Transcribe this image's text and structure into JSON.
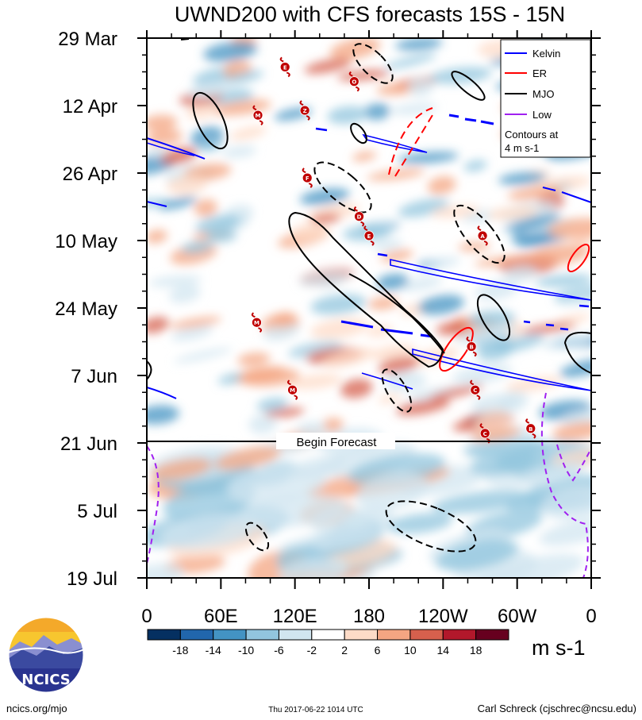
{
  "chart_data": {
    "type": "heatmap",
    "title": "UWND200 with CFS forecasts  15S - 15N",
    "units": "m s-1",
    "x_ticks": [
      "0",
      "60E",
      "120E",
      "180",
      "120W",
      "60W",
      "0"
    ],
    "y_ticks": [
      "29 Mar",
      "12 Apr",
      "26 Apr",
      "10 May",
      "24 May",
      "7 Jun",
      "21 Jun",
      "5 Jul",
      "19 Jul"
    ],
    "forecast_label": "Begin Forecast",
    "forecast_start": "21 Jun",
    "colorbar": {
      "labels": [
        "-18",
        "-14",
        "-10",
        "-6",
        "-2",
        "2",
        "6",
        "10",
        "14",
        "18"
      ],
      "colors": [
        "#053061",
        "#2166ac",
        "#4393c3",
        "#92c5de",
        "#d1e5f0",
        "#ffffff",
        "#fddbc7",
        "#f4a582",
        "#d6604d",
        "#b2182b",
        "#67001f"
      ]
    },
    "legend": {
      "position": "top-right",
      "entries": [
        {
          "name": "Kelvin",
          "color": "#0000ff"
        },
        {
          "name": "ER",
          "color": "#ff0000"
        },
        {
          "name": "MJO",
          "color": "#000000"
        },
        {
          "name": "Low",
          "color": "#a020f0"
        }
      ],
      "note_line1": "Contours at",
      "note_line2": "4 m s-1"
    },
    "storms": [
      {
        "label": "E",
        "lon": 112,
        "date": "4 Apr"
      },
      {
        "label": "O",
        "lon": 168,
        "date": "7 Apr"
      },
      {
        "label": "M",
        "lon": 90,
        "date": "14 Apr"
      },
      {
        "label": "Z",
        "lon": 128,
        "date": "13 Apr"
      },
      {
        "label": "F",
        "lon": 130,
        "date": "27 Apr"
      },
      {
        "label": "D",
        "lon": 172,
        "date": "5 May"
      },
      {
        "label": "E",
        "lon": 180,
        "date": "9 May"
      },
      {
        "label": "A",
        "lon": 272,
        "date": "9 May"
      },
      {
        "label": "M",
        "lon": 89,
        "date": "27 May"
      },
      {
        "label": "B",
        "lon": 263,
        "date": "1 Jun"
      },
      {
        "label": "M",
        "lon": 118,
        "date": "10 Jun"
      },
      {
        "label": "C",
        "lon": 266,
        "date": "10 Jun"
      },
      {
        "label": "C",
        "lon": 274,
        "date": "19 Jun"
      },
      {
        "label": "B",
        "lon": 311,
        "date": "18 Jun"
      }
    ]
  },
  "footer": {
    "logo_text": "NCICS",
    "site": "ncics.org/mjo",
    "timestamp": "Thu 2017-06-22 1014 UTC",
    "author": "Carl Schreck (cjschrec@ncsu.edu)"
  }
}
